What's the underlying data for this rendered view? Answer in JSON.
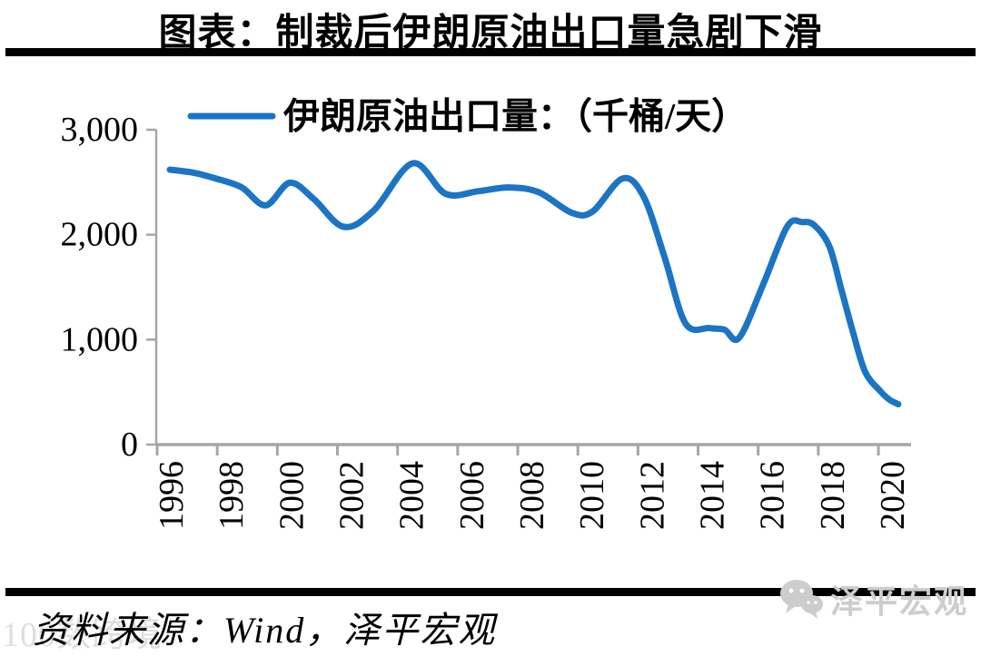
{
  "title": "图表：制裁后伊朗原油出口量急剧下滑",
  "source": "资料来源：Wind，泽平宏观",
  "watermarks": {
    "bottom_left": "100数跨境",
    "bottom_right": "泽平宏观"
  },
  "colors": {
    "line": "#1b74c4",
    "axis": "#a6a6a6",
    "rule": "#000000",
    "watermark": "#cdcdcd"
  },
  "chart_data": {
    "type": "line",
    "title": "图表：制裁后伊朗原油出口量急剧下滑",
    "legend": {
      "position": "top",
      "entries": [
        "伊朗原油出口量：（千桶/天）"
      ]
    },
    "xlabel": "",
    "ylabel": "",
    "unit": "千桶/天",
    "grid": false,
    "ylim": [
      0,
      3000
    ],
    "xlim": [
      1996,
      2021
    ],
    "y_ticks": [
      {
        "value": 3000,
        "label": "3,000"
      },
      {
        "value": 2000,
        "label": "2,000"
      },
      {
        "value": 1000,
        "label": "1,000"
      },
      {
        "value": 0,
        "label": "0"
      }
    ],
    "x_ticks": [
      1996,
      1998,
      2000,
      2002,
      2004,
      2006,
      2008,
      2010,
      2012,
      2014,
      2016,
      2018,
      2020
    ],
    "series": [
      {
        "name": "伊朗原油出口量：（千桶/天）",
        "color": "#1b74c4",
        "points": [
          [
            1996.0,
            2620
          ],
          [
            1996.8,
            2590
          ],
          [
            1997.6,
            2530
          ],
          [
            1998.4,
            2450
          ],
          [
            1999.2,
            2280
          ],
          [
            2000.0,
            2495
          ],
          [
            2000.8,
            2340
          ],
          [
            2001.8,
            2075
          ],
          [
            2002.8,
            2230
          ],
          [
            2004.1,
            2680
          ],
          [
            2005.2,
            2390
          ],
          [
            2006.3,
            2415
          ],
          [
            2007.3,
            2450
          ],
          [
            2008.3,
            2405
          ],
          [
            2009.4,
            2210
          ],
          [
            2010.1,
            2220
          ],
          [
            2011.1,
            2535
          ],
          [
            2011.8,
            2365
          ],
          [
            2012.5,
            1790
          ],
          [
            2013.2,
            1155
          ],
          [
            2014.0,
            1110
          ],
          [
            2014.5,
            1095
          ],
          [
            2015.0,
            1020
          ],
          [
            2015.8,
            1530
          ],
          [
            2016.6,
            2080
          ],
          [
            2017.1,
            2120
          ],
          [
            2017.5,
            2090
          ],
          [
            2018.0,
            1890
          ],
          [
            2018.4,
            1480
          ],
          [
            2018.8,
            1060
          ],
          [
            2019.2,
            690
          ],
          [
            2019.7,
            510
          ],
          [
            2020.0,
            430
          ],
          [
            2020.3,
            385
          ]
        ]
      }
    ]
  }
}
